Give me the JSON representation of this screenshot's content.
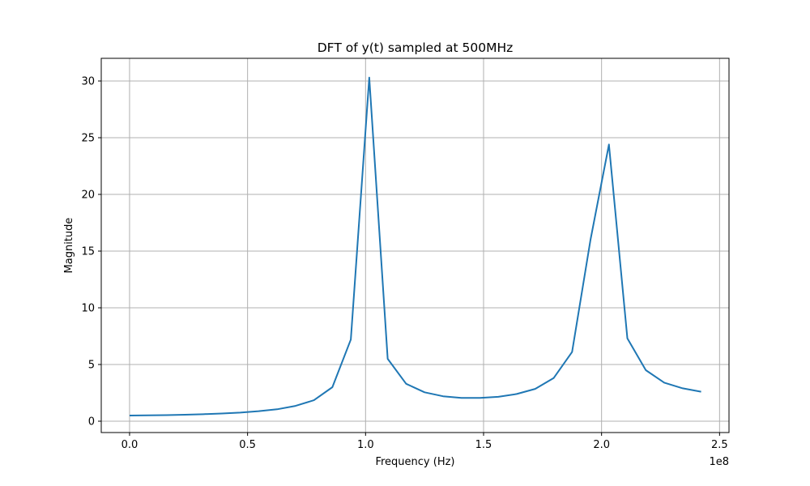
{
  "chart_data": {
    "type": "line",
    "title": "DFT of y(t) sampled at 500MHz",
    "xlabel": "Frequency (Hz)",
    "ylabel": "Magnitude",
    "x_offset_label": "1e8",
    "xlim": [
      -12000000.0,
      254000000.0
    ],
    "ylim": [
      -1.0,
      32.0
    ],
    "grid": true,
    "x_ticks": [
      {
        "value": 0.0,
        "label": "0.0"
      },
      {
        "value": 50000000.0,
        "label": "0.5"
      },
      {
        "value": 100000000.0,
        "label": "1.0"
      },
      {
        "value": 150000000.0,
        "label": "1.5"
      },
      {
        "value": 200000000.0,
        "label": "2.0"
      },
      {
        "value": 250000000.0,
        "label": "2.5"
      }
    ],
    "y_ticks": [
      {
        "value": 0,
        "label": "0"
      },
      {
        "value": 5,
        "label": "5"
      },
      {
        "value": 10,
        "label": "10"
      },
      {
        "value": 15,
        "label": "15"
      },
      {
        "value": 20,
        "label": "20"
      },
      {
        "value": 25,
        "label": "25"
      },
      {
        "value": 30,
        "label": "30"
      }
    ],
    "series": [
      {
        "color": "#1f77b4",
        "x": [
          0,
          7812500,
          15625000,
          23437500,
          31250000,
          39062500,
          46875000,
          54687500,
          62500000,
          70312500,
          78125000,
          85937500,
          93750000,
          101562500,
          109375000,
          117187500,
          125000000,
          132812500,
          140625000,
          148437500,
          156250000,
          164062500,
          171875000,
          179687500,
          187500000,
          195312500,
          203125000,
          210937500,
          218750000,
          226562500,
          234375000,
          242187500
        ],
        "y": [
          0.5,
          0.52,
          0.54,
          0.57,
          0.62,
          0.68,
          0.76,
          0.88,
          1.05,
          1.35,
          1.85,
          3.0,
          7.2,
          30.3,
          5.5,
          3.3,
          2.55,
          2.2,
          2.05,
          2.05,
          2.15,
          2.4,
          2.85,
          3.8,
          6.1,
          16.0,
          24.4,
          7.3,
          4.5,
          3.4,
          2.9,
          2.6
        ]
      }
    ]
  }
}
